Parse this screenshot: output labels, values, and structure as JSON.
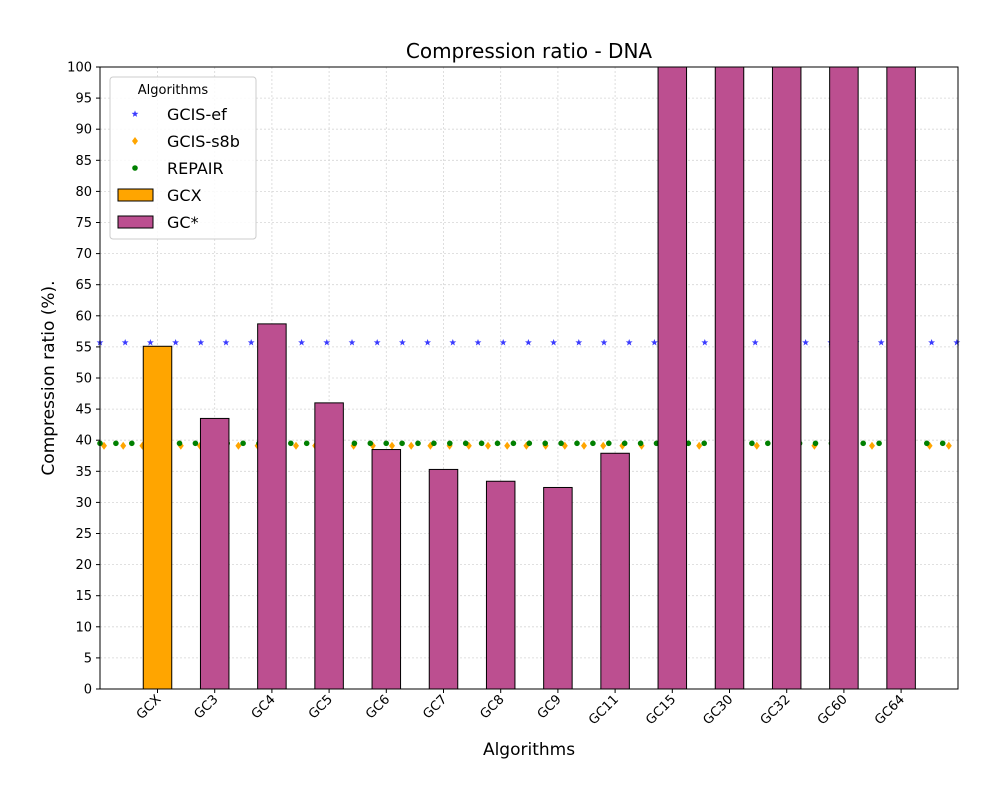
{
  "chart_data": {
    "type": "bar",
    "title": "Compression ratio -  DNA",
    "xlabel": "Algorithms",
    "ylabel": "Compression ratio (%).",
    "ylim": [
      0,
      100
    ],
    "yticks": [
      0,
      5,
      10,
      15,
      20,
      25,
      30,
      35,
      40,
      45,
      50,
      55,
      60,
      65,
      70,
      75,
      80,
      85,
      90,
      95,
      100
    ],
    "categories": [
      "GCX",
      "GC3",
      "GC4",
      "GC5",
      "GC6",
      "GC7",
      "GC8",
      "GC9",
      "GC11",
      "GC15",
      "GC30",
      "GC32",
      "GC60",
      "GC64"
    ],
    "values": [
      55.1,
      43.5,
      58.7,
      46.0,
      38.5,
      35.3,
      33.4,
      32.4,
      37.9,
      100,
      100,
      100,
      100,
      100
    ],
    "bar_series": [
      "GCX",
      "GC*",
      "GC*",
      "GC*",
      "GC*",
      "GC*",
      "GC*",
      "GC*",
      "GC*",
      "GC*",
      "GC*",
      "GC*",
      "GC*",
      "GC*"
    ],
    "reference_lines": [
      {
        "name": "GCIS-ef",
        "value": 55.7,
        "marker": "star",
        "color": "#3b3bff"
      },
      {
        "name": "GCIS-s8b",
        "value": 39.1,
        "marker": "diamond",
        "color": "#ffa500"
      },
      {
        "name": "REPAIR",
        "value": 39.5,
        "marker": "circle",
        "color": "#008000"
      }
    ],
    "legend": {
      "title": "Algorithms",
      "placement": "top-left",
      "entries": [
        {
          "label": "GCIS-ef",
          "kind": "star",
          "color": "#3b3bff"
        },
        {
          "label": "GCIS-s8b",
          "kind": "diamond",
          "color": "#ffa500"
        },
        {
          "label": "REPAIR",
          "kind": "circle",
          "color": "#008000"
        },
        {
          "label": "GCX",
          "kind": "bar",
          "color": "#ffa500"
        },
        {
          "label": "GC*",
          "kind": "bar",
          "color": "#bc4f90"
        }
      ]
    },
    "colors": {
      "GCX": "#ffa500",
      "GC*": "#bc4f90"
    },
    "grid": true
  }
}
